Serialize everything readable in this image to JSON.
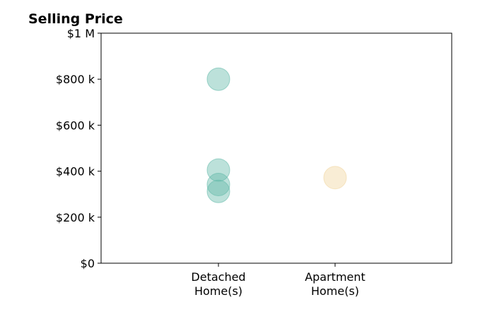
{
  "chart_data": {
    "type": "scatter",
    "title": "Selling Price",
    "xlabel": "",
    "ylabel": "",
    "categories": [
      [
        "Detached",
        "Home(s)"
      ],
      [
        "Apartment",
        "Home(s)"
      ]
    ],
    "ylim": [
      0,
      1000000
    ],
    "yticks": [
      {
        "value": 0,
        "label": "$0"
      },
      {
        "value": 200000,
        "label": "$200 k"
      },
      {
        "value": 400000,
        "label": "$400 k"
      },
      {
        "value": 600000,
        "label": "$600 k"
      },
      {
        "value": 800000,
        "label": "$800 k"
      },
      {
        "value": 1000000,
        "label": "$1 M"
      }
    ],
    "points": [
      {
        "category": 0,
        "value": 800000,
        "color": "#5fb8a8"
      },
      {
        "category": 0,
        "value": 405000,
        "color": "#5fb8a8"
      },
      {
        "category": 0,
        "value": 342000,
        "color": "#5fb8a8"
      },
      {
        "category": 0,
        "value": 312000,
        "color": "#5fb8a8"
      },
      {
        "category": 1,
        "value": 372000,
        "color": "#f0d49a"
      }
    ],
    "grid": false,
    "legend": "none"
  }
}
